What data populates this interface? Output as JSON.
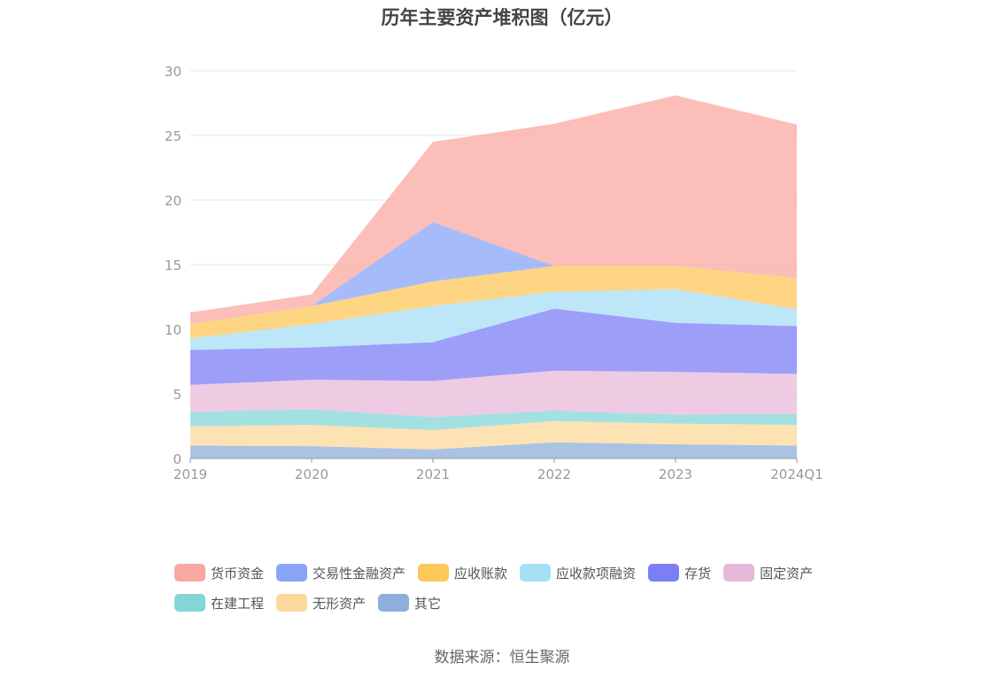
{
  "title": "历年主要资产堆积图（亿元）",
  "source": "数据来源：恒生聚源",
  "chart_data": {
    "type": "area",
    "stacked": true,
    "title": "历年主要资产堆积图（亿元）",
    "x": [
      "2019",
      "2020",
      "2021",
      "2022",
      "2023",
      "2024Q1"
    ],
    "ylim": [
      0,
      30
    ],
    "yticks": [
      0,
      5,
      10,
      15,
      20,
      25,
      30
    ],
    "grid": true,
    "legend_position": "bottom",
    "series": [
      {
        "name": "其它",
        "color": "#8eaedb",
        "values": [
          1.0,
          0.95,
          0.7,
          1.25,
          1.1,
          1.0
        ]
      },
      {
        "name": "无形资产",
        "color": "#fcd89a",
        "values": [
          1.5,
          1.65,
          1.5,
          1.65,
          1.6,
          1.6
        ]
      },
      {
        "name": "在建工程",
        "color": "#84d5d8",
        "values": [
          1.1,
          1.2,
          1.0,
          0.8,
          0.7,
          0.85
        ]
      },
      {
        "name": "固定资产",
        "color": "#e8b8da",
        "values": [
          2.1,
          2.3,
          2.8,
          3.1,
          3.3,
          3.1
        ]
      },
      {
        "name": "存货",
        "color": "#7c7ef5",
        "values": [
          2.7,
          2.5,
          3.0,
          4.8,
          3.8,
          3.7
        ]
      },
      {
        "name": "应收款项融资",
        "color": "#a7dff7",
        "values": [
          0.9,
          1.8,
          2.8,
          1.3,
          2.6,
          1.3
        ]
      },
      {
        "name": "应收账款",
        "color": "#fdc75a",
        "values": [
          1.1,
          1.4,
          1.9,
          2.0,
          1.8,
          2.4
        ]
      },
      {
        "name": "交易性金融资产",
        "color": "#88a5f8",
        "values": [
          0,
          0,
          4.6,
          0,
          0,
          0
        ]
      },
      {
        "name": "货币资金",
        "color": "#f9a8a0",
        "values": [
          0.9,
          0.9,
          6.2,
          11.0,
          13.2,
          11.9
        ]
      }
    ]
  },
  "legend": {
    "row1": [
      "货币资金",
      "交易性金融资产",
      "应收账款",
      "应收款项融资",
      "存货",
      "固定资产"
    ],
    "row2": [
      "在建工程",
      "无形资产",
      "其它"
    ],
    "colors1": [
      "#f9a8a0",
      "#88a5f8",
      "#fdc75a",
      "#a7dff7",
      "#7c7ef5",
      "#e8b8da"
    ],
    "colors2": [
      "#84d5d8",
      "#fcd89a",
      "#8eaedb"
    ]
  }
}
